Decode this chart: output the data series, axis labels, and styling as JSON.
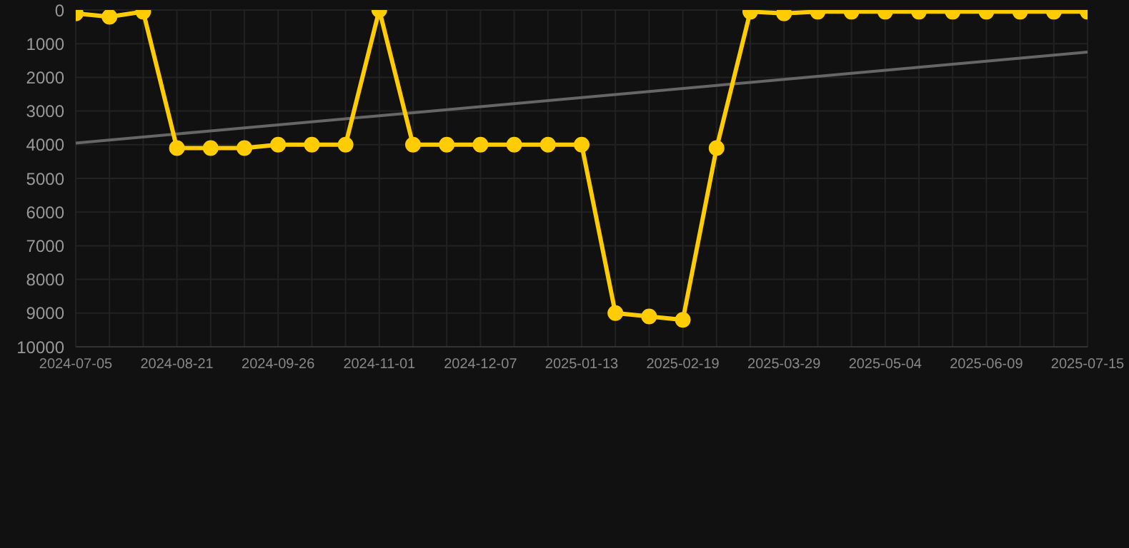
{
  "chart_data": {
    "type": "line",
    "categories": [
      "2024-07-05",
      null,
      null,
      "2024-08-21",
      null,
      null,
      "2024-09-26",
      null,
      null,
      "2024-11-01",
      null,
      null,
      "2024-12-07",
      null,
      null,
      "2025-01-13",
      null,
      null,
      "2025-02-19",
      null,
      null,
      "2025-03-29",
      null,
      null,
      "2025-05-04",
      null,
      null,
      "2025-06-09",
      null,
      null,
      "2025-07-15"
    ],
    "series": [
      {
        "color": "#ffcc00",
        "marker": "circle",
        "values": [
          100,
          200,
          50,
          4100,
          4100,
          4100,
          4000,
          4000,
          4000,
          0,
          4000,
          4000,
          4000,
          4000,
          4000,
          4000,
          9000,
          9100,
          9200,
          4100,
          50,
          100,
          50,
          50,
          50,
          50,
          50,
          50,
          50,
          50,
          50
        ]
      },
      {
        "color": "#666666",
        "marker": "none",
        "values": [
          3950,
          3860,
          3770,
          3680,
          3590,
          3500,
          3410,
          3320,
          3230,
          3140,
          3050,
          2960,
          2870,
          2780,
          2690,
          2600,
          2510,
          2420,
          2330,
          2240,
          2150,
          2060,
          1970,
          1880,
          1790,
          1700,
          1610,
          1520,
          1430,
          1340,
          1250
        ]
      }
    ],
    "ylim": [
      10000,
      0
    ],
    "yticks": [
      0,
      1000,
      2000,
      3000,
      4000,
      5000,
      6000,
      7000,
      8000,
      9000,
      10000
    ],
    "grid": true
  }
}
